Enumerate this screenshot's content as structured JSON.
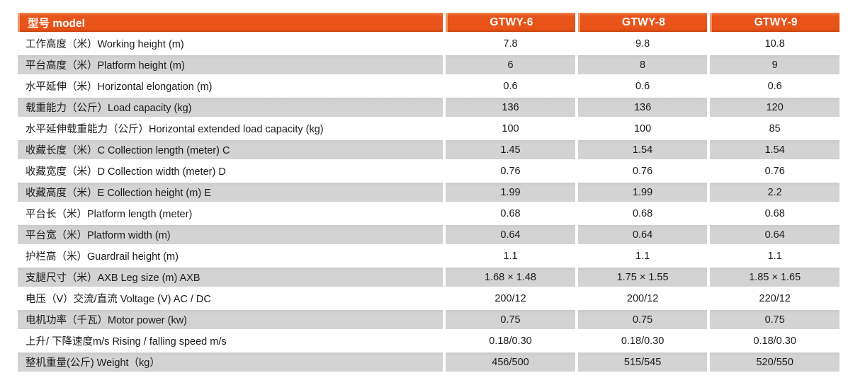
{
  "colors": {
    "header_bg": "#e8541a",
    "header_bg_light": "#f08150",
    "header_text": "#ffffff",
    "shaded_row_bg": "#d3d3d3",
    "row_text": "#1b1b1b",
    "page_bg": "#ffffff"
  },
  "table": {
    "header": {
      "model_label": "型号 model",
      "columns": [
        "GTWY-6",
        "GTWY-8",
        "GTWY-9"
      ]
    },
    "rows": [
      {
        "label": "工作高度（米）Working height (m)",
        "values": [
          "7.8",
          "9.8",
          "10.8"
        ],
        "shaded": false
      },
      {
        "label": "平台高度（米）Platform height (m)",
        "values": [
          "6",
          "8",
          "9"
        ],
        "shaded": true
      },
      {
        "label": "水平延伸（米）Horizontal elongation (m)",
        "values": [
          "0.6",
          "0.6",
          "0.6"
        ],
        "shaded": false
      },
      {
        "label": "载重能力（公斤）Load capacity (kg)",
        "values": [
          "136",
          "136",
          "120"
        ],
        "shaded": true
      },
      {
        "label": "水平延伸载重能力（公斤）Horizontal extended load capacity (kg)",
        "values": [
          "100",
          "100",
          "85"
        ],
        "shaded": false
      },
      {
        "label": "收藏长度（米）C Collection length (meter) C",
        "values": [
          "1.45",
          "1.54",
          "1.54"
        ],
        "shaded": true
      },
      {
        "label": "收藏宽度（米）D Collection width (meter) D",
        "values": [
          "0.76",
          "0.76",
          "0.76"
        ],
        "shaded": false
      },
      {
        "label": "收藏高度（米）E Collection height (m) E",
        "values": [
          "1.99",
          "1.99",
          "2.2"
        ],
        "shaded": true
      },
      {
        "label": "平台长（米）Platform length (meter)",
        "values": [
          "0.68",
          "0.68",
          "0.68"
        ],
        "shaded": false
      },
      {
        "label": "平台宽（米）Platform width (m)",
        "values": [
          "0.64",
          "0.64",
          "0.64"
        ],
        "shaded": true
      },
      {
        "label": "护栏高（米）Guardrail height (m)",
        "values": [
          "1.1",
          "1.1",
          "1.1"
        ],
        "shaded": false
      },
      {
        "label": "支腿尺寸（米）AXB Leg size (m) AXB",
        "values": [
          "1.68 × 1.48",
          "1.75 × 1.55",
          "1.85 × 1.65"
        ],
        "shaded": true
      },
      {
        "label": "电压（V）交流/直流 Voltage (V) AC / DC",
        "values": [
          "200/12",
          "200/12",
          "220/12"
        ],
        "shaded": false
      },
      {
        "label": "电机功率（千瓦）Motor power (kw)",
        "values": [
          "0.75",
          "0.75",
          "0.75"
        ],
        "shaded": true
      },
      {
        "label": "上升/ 下降速度m/s Rising / falling speed m/s",
        "values": [
          "0.18/0.30",
          "0.18/0.30",
          "0.18/0.30"
        ],
        "shaded": false
      },
      {
        "label": "整机重量(公斤) Weight（kg）",
        "values": [
          "456/500",
          "515/545",
          "520/550"
        ],
        "shaded": true
      }
    ]
  }
}
